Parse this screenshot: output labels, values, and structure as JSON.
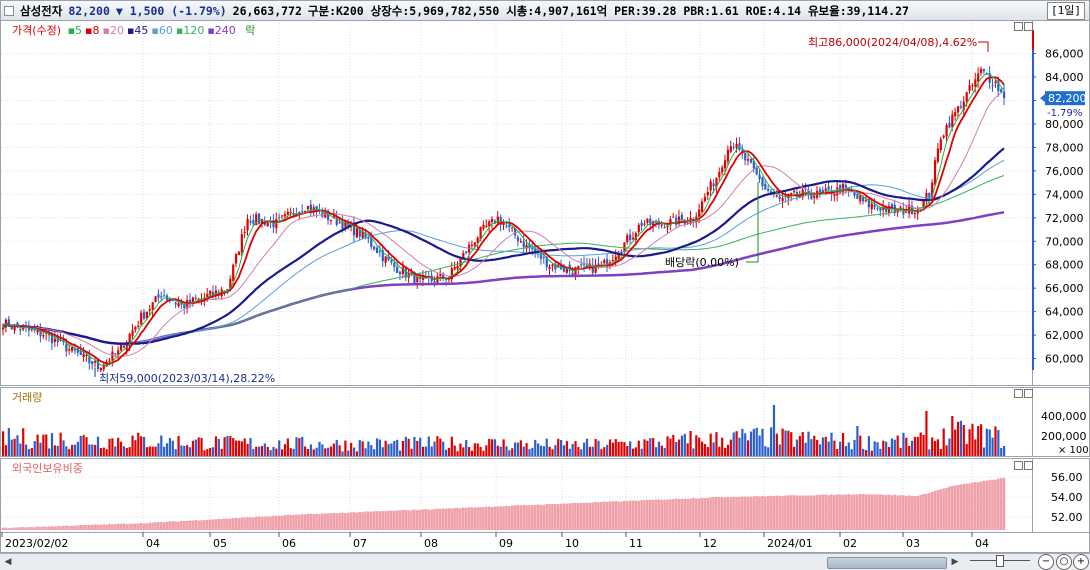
{
  "header": {
    "name": "삼성전자",
    "price": "82,200",
    "change": "▼ 1,500 (-1.79%)",
    "volume": "26,663,772",
    "info": "구분:K200 상장수:5,969,782,550 시총:4,907,161억 PER:39.28 PBR:1.61 ROE:4.14 유보율:39,114.27",
    "period_button": "[1일]"
  },
  "legend": {
    "price_label": "가격(수정)",
    "ma": [
      {
        "label": "5",
        "color": "#22b14c"
      },
      {
        "label": "8",
        "color": "#e00000"
      },
      {
        "label": "20",
        "color": "#d07fb0"
      },
      {
        "label": "45",
        "color": "#1a1a8c"
      },
      {
        "label": "60",
        "color": "#5aa0d6"
      },
      {
        "label": "120",
        "color": "#3ab060"
      },
      {
        "label": "240",
        "color": "#8040c0"
      }
    ],
    "drop_label": "락"
  },
  "volume_pane": {
    "title": "거래량"
  },
  "foreign_pane": {
    "title": "외국인보유비중"
  },
  "annotations": {
    "high": "최고86,000(2024/04/08),4.62%",
    "low": "최저59,000(2023/03/14),28.22%",
    "dividend": "배당락(0.00%)"
  },
  "price_tag": {
    "value": "82,200",
    "change": "-1.79%"
  },
  "chart_data": {
    "type": "candlestick",
    "x_tick_labels": [
      "2023/02/02",
      "04",
      "05",
      "06",
      "07",
      "08",
      "09",
      "10",
      "11",
      "12",
      "2024/01",
      "02",
      "03",
      "04"
    ],
    "price_axis": {
      "ticks": [
        60000,
        62000,
        64000,
        66000,
        68000,
        70000,
        72000,
        74000,
        76000,
        78000,
        80000,
        82000,
        84000,
        86000
      ],
      "tick_labels": [
        "60,000",
        "62,000",
        "64,000",
        "66,000",
        "68,000",
        "70,000",
        "72,000",
        "74,000",
        "76,000",
        "78,000",
        "80,000",
        "82,000",
        "84,000",
        "86,000"
      ],
      "range": [
        58000,
        87500
      ]
    },
    "volume_axis": {
      "tick_labels": [
        "400,000",
        "200,000"
      ],
      "unit": "× 100",
      "ticks": [
        400000,
        200000
      ],
      "range": [
        0,
        560000
      ]
    },
    "foreign_axis": {
      "tick_labels": [
        "56.00",
        "54.00",
        "52.00"
      ],
      "ticks": [
        56,
        54,
        52
      ],
      "range": [
        50.7,
        56.7
      ]
    },
    "close_anchors": [
      [
        0,
        63000
      ],
      [
        15,
        62000
      ],
      [
        25,
        60500
      ],
      [
        33,
        59300
      ],
      [
        40,
        60500
      ],
      [
        48,
        63500
      ],
      [
        55,
        65500
      ],
      [
        62,
        64500
      ],
      [
        70,
        65200
      ],
      [
        78,
        66000
      ],
      [
        85,
        72000
      ],
      [
        95,
        71500
      ],
      [
        105,
        73000
      ],
      [
        118,
        71500
      ],
      [
        125,
        70500
      ],
      [
        135,
        68000
      ],
      [
        145,
        66500
      ],
      [
        155,
        67000
      ],
      [
        165,
        70500
      ],
      [
        172,
        72000
      ],
      [
        180,
        70000
      ],
      [
        190,
        68000
      ],
      [
        198,
        67500
      ],
      [
        208,
        67800
      ],
      [
        215,
        69500
      ],
      [
        222,
        71500
      ],
      [
        230,
        71500
      ],
      [
        240,
        72000
      ],
      [
        248,
        75500
      ],
      [
        253,
        78500
      ],
      [
        258,
        77000
      ],
      [
        265,
        74500
      ],
      [
        270,
        73500
      ],
      [
        278,
        74000
      ],
      [
        285,
        74000
      ],
      [
        292,
        74500
      ],
      [
        300,
        73200
      ],
      [
        310,
        72500
      ],
      [
        318,
        72800
      ],
      [
        322,
        74000
      ],
      [
        326,
        79000
      ],
      [
        330,
        80500
      ],
      [
        335,
        82500
      ],
      [
        340,
        84500
      ],
      [
        345,
        83500
      ],
      [
        348,
        82200
      ]
    ],
    "volume_anchors": [
      [
        0,
        170
      ],
      [
        40,
        150
      ],
      [
        80,
        120
      ],
      [
        120,
        110
      ],
      [
        160,
        120
      ],
      [
        200,
        100
      ],
      [
        240,
        140
      ],
      [
        260,
        180
      ],
      [
        300,
        130
      ],
      [
        320,
        140
      ],
      [
        335,
        220
      ],
      [
        348,
        170
      ]
    ],
    "volume_spikes": [
      [
        268,
        510
      ],
      [
        321,
        450
      ],
      [
        330,
        400
      ],
      [
        297,
        300
      ],
      [
        239,
        250
      ]
    ],
    "foreign_anchors": [
      [
        0,
        50.9
      ],
      [
        50,
        51.4
      ],
      [
        100,
        52.2
      ],
      [
        150,
        52.8
      ],
      [
        200,
        53.4
      ],
      [
        250,
        54.0
      ],
      [
        300,
        54.3
      ],
      [
        318,
        54.1
      ],
      [
        330,
        55.1
      ],
      [
        348,
        55.9
      ]
    ],
    "last_close": 82200,
    "last_change_pct": -1.79
  },
  "colors": {
    "up": "#e00000",
    "down": "#2a5fd0",
    "ma5": "#22b14c",
    "ma8": "#e00000",
    "ma20": "#d07fb0",
    "ma45": "#1a1a8c",
    "ma60": "#5aa0d6",
    "ma120": "#3ab060",
    "ma240": "#8040c0",
    "foreign_bar": "#f0a0a8",
    "grid": "#d7dee6",
    "tag_bg": "#1f6fd0"
  }
}
